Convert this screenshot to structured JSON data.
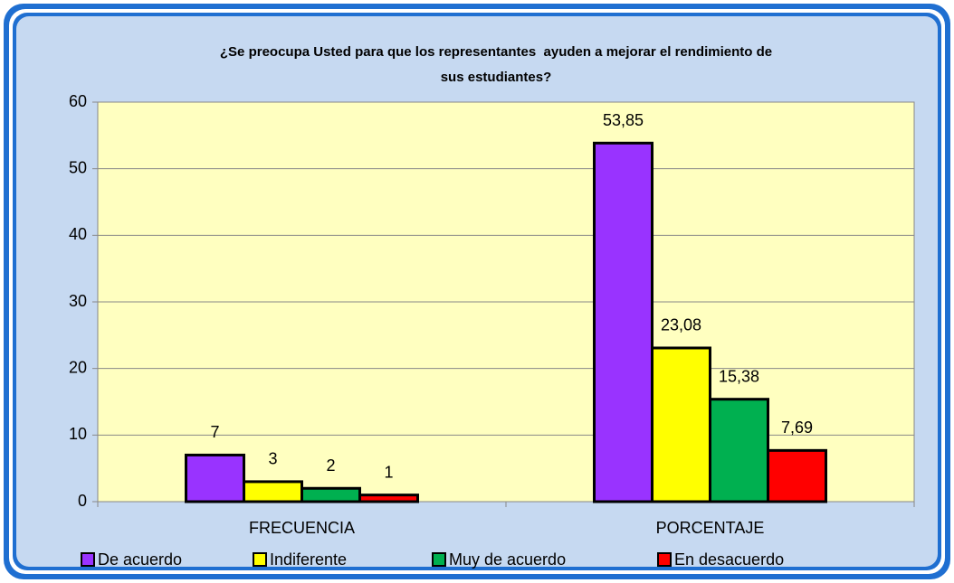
{
  "chart_data": {
    "type": "bar",
    "title": [
      "¿Se preocupa Usted para que los representantes  ayuden a mejorar el rendimiento de",
      "sus estudiantes?"
    ],
    "categories": [
      "FRECUENCIA",
      "PORCENTAJE"
    ],
    "series": [
      {
        "name": "De acuerdo",
        "color": "#9933ff",
        "values": [
          7,
          53.85
        ],
        "value_labels": [
          "7",
          "53,85"
        ]
      },
      {
        "name": "Indiferente",
        "color": "#ffff00",
        "values": [
          3,
          23.08
        ],
        "value_labels": [
          "3",
          "23,08"
        ]
      },
      {
        "name": "Muy de acuerdo",
        "color": "#00b050",
        "values": [
          2,
          15.38
        ],
        "value_labels": [
          "2",
          "15,38"
        ]
      },
      {
        "name": "En desacuerdo",
        "color": "#ff0000",
        "values": [
          1,
          7.69
        ],
        "value_labels": [
          "1",
          "7,69"
        ]
      }
    ],
    "ylim": [
      0,
      60
    ],
    "yticks": [
      0,
      10,
      20,
      30,
      40,
      50,
      60
    ],
    "grid": true,
    "legend": "bottom"
  }
}
